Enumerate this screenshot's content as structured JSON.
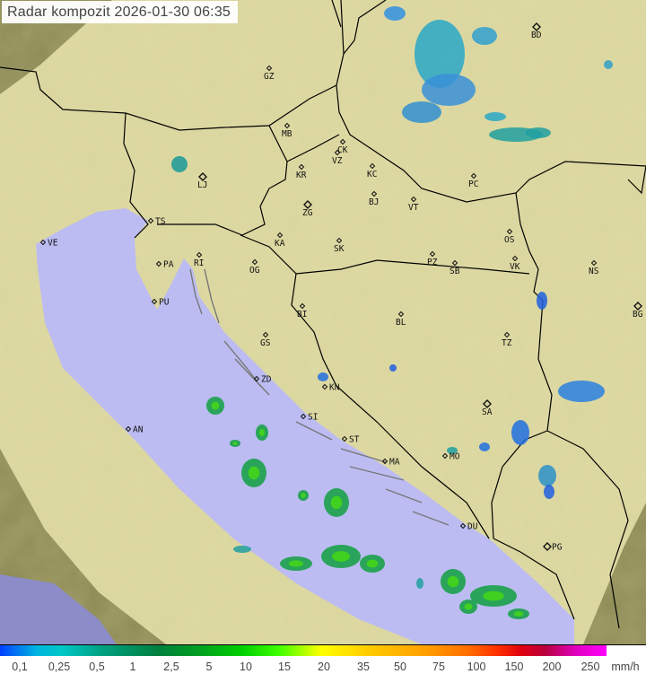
{
  "title": "Radar kompozit  2026-01-30   06:35",
  "colors": {
    "sea": "#babaf0",
    "land": "#e8e2a8",
    "terrain_dark": "#8a8a52",
    "border": "#000000"
  },
  "cities": [
    {
      "code": "GZ",
      "type": "small"
    },
    {
      "code": "BD",
      "type": "capital"
    },
    {
      "code": "MB",
      "type": "small"
    },
    {
      "code": "CK",
      "type": "small"
    },
    {
      "code": "VZ",
      "type": "small"
    },
    {
      "code": "KR",
      "type": "small"
    },
    {
      "code": "KC",
      "type": "small"
    },
    {
      "code": "PC",
      "type": "small"
    },
    {
      "code": "LJ",
      "type": "capital"
    },
    {
      "code": "BJ",
      "type": "small"
    },
    {
      "code": "VT",
      "type": "small"
    },
    {
      "code": "ZG",
      "type": "capital"
    },
    {
      "code": "TS",
      "type": "small"
    },
    {
      "code": "VE",
      "type": "small"
    },
    {
      "code": "RI",
      "type": "small"
    },
    {
      "code": "KA",
      "type": "small"
    },
    {
      "code": "SK",
      "type": "small"
    },
    {
      "code": "OS",
      "type": "small"
    },
    {
      "code": "PA",
      "type": "small"
    },
    {
      "code": "OG",
      "type": "small"
    },
    {
      "code": "PZ",
      "type": "small"
    },
    {
      "code": "SB",
      "type": "small"
    },
    {
      "code": "VK",
      "type": "small"
    },
    {
      "code": "NS",
      "type": "small"
    },
    {
      "code": "PU",
      "type": "small"
    },
    {
      "code": "BG",
      "type": "capital"
    },
    {
      "code": "BI",
      "type": "small"
    },
    {
      "code": "BL",
      "type": "small"
    },
    {
      "code": "GS",
      "type": "small"
    },
    {
      "code": "TZ",
      "type": "small"
    },
    {
      "code": "ZD",
      "type": "small"
    },
    {
      "code": "KN",
      "type": "small"
    },
    {
      "code": "SA",
      "type": "capital"
    },
    {
      "code": "SI",
      "type": "small"
    },
    {
      "code": "AN",
      "type": "small"
    },
    {
      "code": "ST",
      "type": "small"
    },
    {
      "code": "MO",
      "type": "small"
    },
    {
      "code": "MA",
      "type": "small"
    },
    {
      "code": "DU",
      "type": "small"
    },
    {
      "code": "PG",
      "type": "capital"
    }
  ],
  "legend": {
    "labels": [
      "0,1",
      "0,25",
      "0,5",
      "1",
      "2,5",
      "5",
      "10",
      "15",
      "20",
      "35",
      "50",
      "75",
      "100",
      "150",
      "200",
      "250"
    ],
    "unit": "mm/h"
  }
}
